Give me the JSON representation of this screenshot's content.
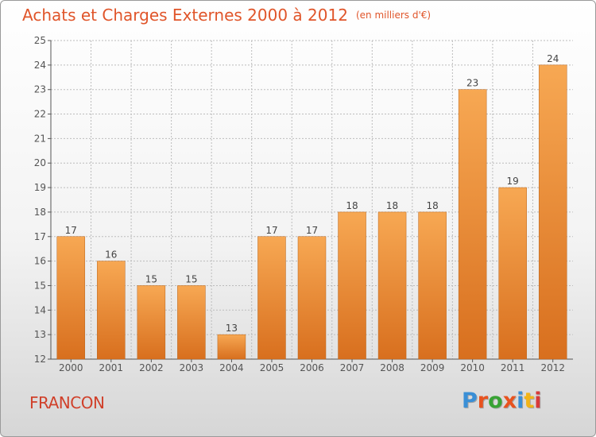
{
  "header": {
    "title": "Achats et Charges Externes 2000 à 2012",
    "unit": "(en milliers d'€)"
  },
  "commune": "FRANCON",
  "logo": {
    "text": "Proxiti",
    "letter_colors": [
      "#3a8fd6",
      "#e8531f",
      "#39a335",
      "#e8531f",
      "#3a8fd6",
      "#f2b417",
      "#d83a3a"
    ]
  },
  "colors": {
    "bar_light": "#f7a853",
    "bar_dark": "#d86f1e",
    "title": "#e0552a",
    "commune": "#d0402a",
    "grid": "#bcbcbc"
  },
  "chart_data": {
    "type": "bar",
    "title": "Achats et Charges Externes 2000 à 2012",
    "subtitle": "(en milliers d'€)",
    "xlabel": "",
    "ylabel": "",
    "categories": [
      "2000",
      "2001",
      "2002",
      "2003",
      "2004",
      "2005",
      "2006",
      "2007",
      "2008",
      "2009",
      "2010",
      "2011",
      "2012"
    ],
    "values": [
      17,
      16,
      15,
      15,
      13,
      17,
      17,
      18,
      18,
      18,
      23,
      19,
      24
    ],
    "ylim": [
      12,
      25
    ],
    "yticks": [
      12,
      13,
      14,
      15,
      16,
      17,
      18,
      19,
      20,
      21,
      22,
      23,
      24,
      25
    ],
    "grid": true,
    "legend": "none"
  }
}
